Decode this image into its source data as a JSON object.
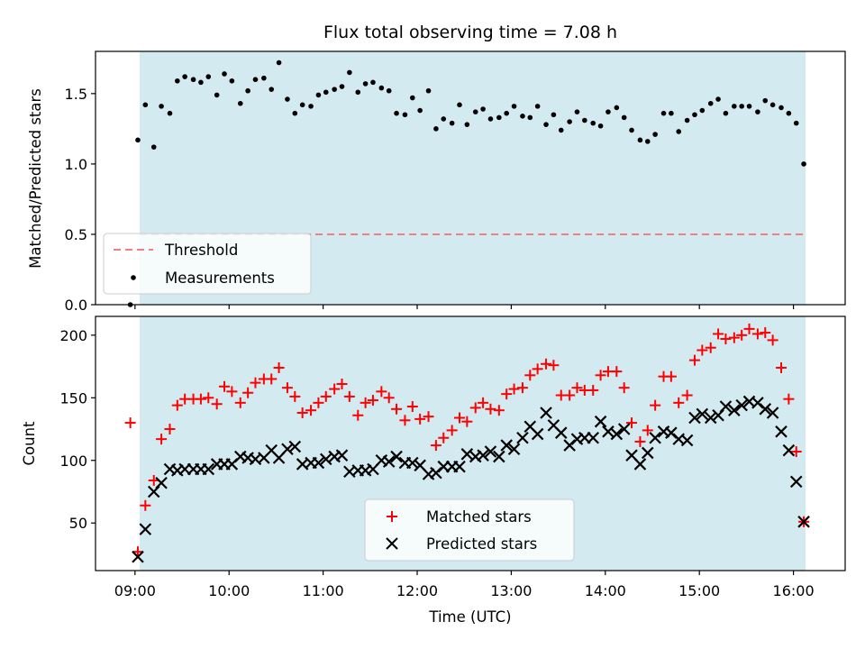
{
  "title": "Flux total observing time = 7.08 h",
  "colors": {
    "shade": "#d3eaf0",
    "threshold": "#f08080",
    "measurement": "#000000",
    "matched": "#ff0000",
    "predicted": "#000000"
  },
  "chart_data": [
    {
      "type": "scatter",
      "ylabel": "Matched/Predicted stars",
      "ylim": [
        0,
        1.8
      ],
      "y_ticks": [
        "0.0",
        "0.5",
        "1.0",
        "1.5"
      ],
      "shade_x": [
        9.05,
        16.13
      ],
      "legend": {
        "placement": "lower-left",
        "threshold_label": "Threshold",
        "measurements_label": "Measurements"
      },
      "threshold": 0.5,
      "x": [
        8.95,
        9.03,
        9.11,
        9.2,
        9.28,
        9.37,
        9.45,
        9.53,
        9.62,
        9.7,
        9.78,
        9.87,
        9.95,
        10.03,
        10.12,
        10.2,
        10.28,
        10.37,
        10.45,
        10.53,
        10.62,
        10.7,
        10.78,
        10.87,
        10.95,
        11.03,
        11.12,
        11.2,
        11.28,
        11.37,
        11.45,
        11.53,
        11.62,
        11.7,
        11.78,
        11.87,
        11.95,
        12.03,
        12.12,
        12.2,
        12.28,
        12.37,
        12.45,
        12.53,
        12.62,
        12.7,
        12.78,
        12.87,
        12.95,
        13.03,
        13.12,
        13.2,
        13.28,
        13.37,
        13.45,
        13.53,
        13.62,
        13.7,
        13.78,
        13.87,
        13.95,
        14.03,
        14.12,
        14.2,
        14.28,
        14.37,
        14.45,
        14.53,
        14.62,
        14.7,
        14.78,
        14.87,
        14.95,
        15.03,
        15.12,
        15.2,
        15.28,
        15.37,
        15.45,
        15.53,
        15.62,
        15.7,
        15.78,
        15.87,
        15.95,
        16.03,
        16.11
      ],
      "values": [
        0.0,
        1.17,
        1.42,
        1.12,
        1.41,
        1.36,
        1.59,
        1.62,
        1.6,
        1.58,
        1.62,
        1.49,
        1.64,
        1.59,
        1.43,
        1.52,
        1.6,
        1.61,
        1.53,
        1.72,
        1.46,
        1.36,
        1.42,
        1.41,
        1.49,
        1.51,
        1.53,
        1.55,
        1.65,
        1.51,
        1.57,
        1.58,
        1.54,
        1.52,
        1.36,
        1.35,
        1.47,
        1.38,
        1.52,
        1.25,
        1.32,
        1.29,
        1.42,
        1.28,
        1.37,
        1.39,
        1.32,
        1.33,
        1.36,
        1.41,
        1.34,
        1.33,
        1.41,
        1.28,
        1.35,
        1.24,
        1.3,
        1.37,
        1.31,
        1.29,
        1.27,
        1.37,
        1.4,
        1.33,
        1.24,
        1.17,
        1.16,
        1.21,
        1.36,
        1.36,
        1.23,
        1.31,
        1.35,
        1.38,
        1.43,
        1.46,
        1.36,
        1.41,
        1.41,
        1.41,
        1.37,
        1.45,
        1.42,
        1.4,
        1.36,
        1.29,
        1.0
      ]
    },
    {
      "type": "scatter",
      "ylabel": "Count",
      "xlabel": "Time (UTC)",
      "ylim": [
        12,
        215
      ],
      "xlim": [
        8.58,
        16.55
      ],
      "y_ticks": [
        "50",
        "100",
        "150",
        "200"
      ],
      "x_ticks": [
        "09:00",
        "10:00",
        "11:00",
        "12:00",
        "13:00",
        "14:00",
        "15:00",
        "16:00"
      ],
      "shade_x": [
        9.05,
        16.13
      ],
      "legend": {
        "placement": "lower-center"
      },
      "series": [
        {
          "name": "Matched stars",
          "x": [
            8.95,
            9.03,
            9.11,
            9.2,
            9.28,
            9.37,
            9.45,
            9.53,
            9.62,
            9.7,
            9.78,
            9.87,
            9.95,
            10.03,
            10.12,
            10.2,
            10.28,
            10.37,
            10.45,
            10.53,
            10.62,
            10.7,
            10.78,
            10.87,
            10.95,
            11.03,
            11.12,
            11.2,
            11.28,
            11.37,
            11.45,
            11.53,
            11.62,
            11.7,
            11.78,
            11.87,
            11.95,
            12.03,
            12.12,
            12.2,
            12.28,
            12.37,
            12.45,
            12.53,
            12.62,
            12.7,
            12.78,
            12.87,
            12.95,
            13.03,
            13.12,
            13.2,
            13.28,
            13.37,
            13.45,
            13.53,
            13.62,
            13.7,
            13.78,
            13.87,
            13.95,
            14.03,
            14.12,
            14.2,
            14.28,
            14.37,
            14.45,
            14.53,
            14.62,
            14.7,
            14.78,
            14.87,
            14.95,
            15.03,
            15.12,
            15.2,
            15.28,
            15.37,
            15.45,
            15.53,
            15.62,
            15.7,
            15.78,
            15.87,
            15.95,
            16.03,
            16.11
          ],
          "values": [
            130,
            27,
            64,
            84,
            117,
            125,
            144,
            149,
            149,
            149,
            150,
            145,
            159,
            155,
            146,
            154,
            162,
            165,
            165,
            174,
            158,
            151,
            138,
            140,
            146,
            151,
            157,
            161,
            151,
            136,
            146,
            148,
            155,
            150,
            141,
            132,
            143,
            133,
            135,
            112,
            118,
            124,
            134,
            131,
            142,
            146,
            141,
            140,
            153,
            157,
            158,
            168,
            173,
            177,
            176,
            152,
            152,
            158,
            156,
            156,
            168,
            171,
            171,
            158,
            130,
            115,
            124,
            144,
            167,
            167,
            146,
            152,
            180,
            188,
            190,
            201,
            197,
            198,
            200,
            205,
            201,
            202,
            196,
            174,
            149,
            107,
            51
          ]
        },
        {
          "name": "Predicted stars",
          "x": [
            8.95,
            9.03,
            9.11,
            9.2,
            9.28,
            9.37,
            9.45,
            9.53,
            9.62,
            9.7,
            9.78,
            9.87,
            9.95,
            10.03,
            10.12,
            10.2,
            10.28,
            10.37,
            10.45,
            10.53,
            10.62,
            10.7,
            10.78,
            10.87,
            10.95,
            11.03,
            11.12,
            11.2,
            11.28,
            11.37,
            11.45,
            11.53,
            11.62,
            11.7,
            11.78,
            11.87,
            11.95,
            12.03,
            12.12,
            12.2,
            12.28,
            12.37,
            12.45,
            12.53,
            12.62,
            12.7,
            12.78,
            12.87,
            12.95,
            13.03,
            13.12,
            13.2,
            13.28,
            13.37,
            13.45,
            13.53,
            13.62,
            13.7,
            13.78,
            13.87,
            13.95,
            14.03,
            14.12,
            14.2,
            14.28,
            14.37,
            14.45,
            14.53,
            14.62,
            14.7,
            14.78,
            14.87,
            14.95,
            15.03,
            15.12,
            15.2,
            15.28,
            15.37,
            15.45,
            15.53,
            15.62,
            15.7,
            15.78,
            15.87,
            15.95,
            16.03,
            16.11
          ],
          "values": [
            null,
            23,
            45,
            75,
            82,
            93,
            92,
            93,
            93,
            93,
            93,
            97,
            97,
            97,
            103,
            102,
            101,
            102,
            108,
            102,
            109,
            111,
            97,
            98,
            98,
            101,
            103,
            104,
            91,
            92,
            92,
            93,
            100,
            99,
            103,
            98,
            98,
            96,
            89,
            90,
            95,
            95,
            95,
            105,
            103,
            104,
            107,
            103,
            112,
            109,
            118,
            127,
            121,
            138,
            128,
            122,
            112,
            117,
            118,
            118,
            131,
            123,
            121,
            125,
            104,
            97,
            106,
            118,
            123,
            122,
            117,
            116,
            134,
            137,
            134,
            136,
            143,
            140,
            144,
            147,
            146,
            141,
            138,
            123,
            108,
            83,
            51
          ]
        }
      ]
    }
  ]
}
